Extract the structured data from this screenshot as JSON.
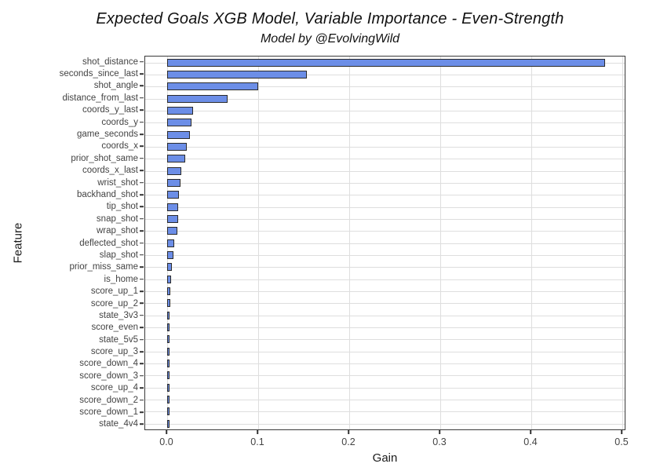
{
  "header": {
    "title": "Expected Goals XGB Model, Variable Importance - Even-Strength",
    "subtitle": "Model by @EvolvingWild"
  },
  "chart_data": {
    "type": "bar",
    "orientation": "horizontal",
    "title": "Expected Goals XGB Model, Variable Importance - Even-Strength",
    "subtitle": "Model by @EvolvingWild",
    "xlabel": "Gain",
    "ylabel": "Feature",
    "xlim": [
      0,
      0.5
    ],
    "x_ticks": [
      0,
      0.1,
      0.2,
      0.3,
      0.4,
      0.5
    ],
    "x_tick_labels": [
      "0.0",
      "0.1",
      "0.2",
      "0.3",
      "0.4",
      "0.5"
    ],
    "grid": "major gridlines on white panel, dark panel border",
    "legend": "none",
    "categories": [
      "shot_distance",
      "seconds_since_last",
      "shot_angle",
      "distance_from_last",
      "coords_y_last",
      "coords_y",
      "game_seconds",
      "coords_x",
      "prior_shot_same",
      "coords_x_last",
      "wrist_shot",
      "backhand_shot",
      "tip_shot",
      "snap_shot",
      "wrap_shot",
      "deflected_shot",
      "slap_shot",
      "prior_miss_same",
      "is_home",
      "score_up_1",
      "score_up_2",
      "state_3v3",
      "score_even",
      "state_5v5",
      "score_up_3",
      "score_down_4",
      "score_down_3",
      "score_up_4",
      "score_down_2",
      "score_down_1",
      "state_4v4"
    ],
    "values": [
      0.479,
      0.152,
      0.098,
      0.065,
      0.027,
      0.025,
      0.023,
      0.0195,
      0.0185,
      0.014,
      0.0125,
      0.011,
      0.0105,
      0.01,
      0.0095,
      0.006,
      0.0055,
      0.0035,
      0.0023,
      0.0017,
      0.0014,
      0.0012,
      0.0011,
      0.0011,
      0.0009,
      0.0009,
      0.0008,
      0.0008,
      0.0007,
      0.0007,
      0.0006
    ],
    "colors": {
      "bar_fill": "#6C8EE7",
      "bar_border": "#2B2B2B",
      "gridline": "#DEDEDE",
      "panel_border": "#3A3A3A",
      "tick_label": "#434343",
      "axis_title": "#1A1A1A"
    }
  }
}
